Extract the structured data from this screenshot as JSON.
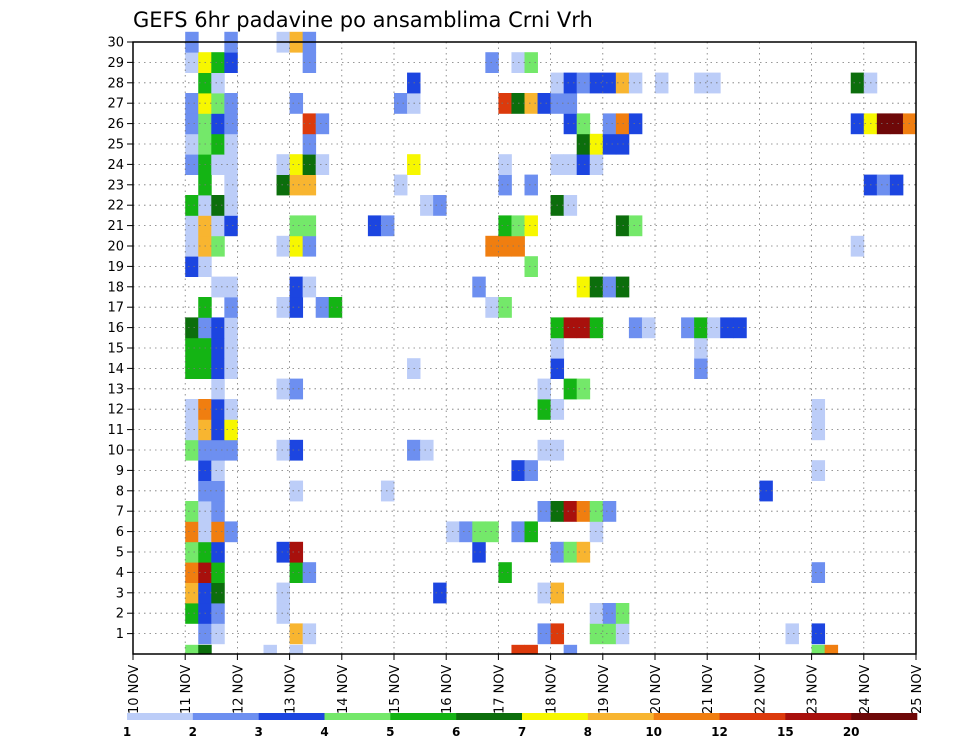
{
  "chart_data": {
    "type": "heatmap",
    "title": "GEFS 6hr padavine po ansamblima Crni Vrh",
    "y_ticks": [
      1,
      2,
      3,
      4,
      5,
      6,
      7,
      8,
      9,
      10,
      11,
      12,
      13,
      14,
      15,
      16,
      17,
      18,
      19,
      20,
      21,
      22,
      23,
      24,
      25,
      26,
      27,
      28,
      29,
      30
    ],
    "y_range": [
      0,
      30
    ],
    "x_range": [
      10,
      25
    ],
    "x_ticks": [
      "10 NOV",
      "11 NOV",
      "12 NOV",
      "13 NOV",
      "14 NOV",
      "15 NOV",
      "16 NOV",
      "17 NOV",
      "18 NOV",
      "19 NOV",
      "20 NOV",
      "21 NOV",
      "22 NOV",
      "23 NOV",
      "24 NOV",
      "25 NOV"
    ],
    "grid": true,
    "colorbar": {
      "labels": [
        "1",
        "2",
        "3",
        "4",
        "5",
        "6",
        "7",
        "8",
        "10",
        "12",
        "15",
        "20"
      ],
      "colors": [
        "#bccdf8",
        "#6d8ff0",
        "#1c45e0",
        "#74e86a",
        "#14b414",
        "#0c6e0c",
        "#f7f700",
        "#f8b530",
        "#f07e10",
        "#dc3a0c",
        "#a8100c",
        "#6e0808"
      ]
    },
    "cells": [
      [
        11.0,
        0,
        4
      ],
      [
        11.25,
        0,
        6
      ],
      [
        12.5,
        0,
        1
      ],
      [
        13.0,
        0,
        1
      ],
      [
        17.25,
        0,
        10
      ],
      [
        17.5,
        0,
        10
      ],
      [
        18.25,
        0,
        2
      ],
      [
        23.0,
        0,
        4
      ],
      [
        23.25,
        0,
        9
      ],
      [
        11.25,
        1,
        2
      ],
      [
        11.5,
        1,
        1
      ],
      [
        13.0,
        1,
        8
      ],
      [
        13.25,
        1,
        1
      ],
      [
        17.75,
        1,
        2
      ],
      [
        18.0,
        1,
        10
      ],
      [
        18.75,
        1,
        4
      ],
      [
        19.0,
        1,
        4
      ],
      [
        19.25,
        1,
        1
      ],
      [
        22.5,
        1,
        1
      ],
      [
        23.0,
        1,
        3
      ],
      [
        11.0,
        2,
        5
      ],
      [
        11.25,
        2,
        3
      ],
      [
        11.5,
        2,
        2
      ],
      [
        12.75,
        2,
        1
      ],
      [
        18.75,
        2,
        1
      ],
      [
        19.0,
        2,
        2
      ],
      [
        19.25,
        2,
        4
      ],
      [
        11.0,
        3,
        8
      ],
      [
        11.25,
        3,
        3
      ],
      [
        11.5,
        3,
        6
      ],
      [
        12.75,
        3,
        1
      ],
      [
        15.75,
        3,
        3
      ],
      [
        17.75,
        3,
        1
      ],
      [
        18.0,
        3,
        8
      ],
      [
        11.0,
        4,
        9
      ],
      [
        11.25,
        4,
        11
      ],
      [
        11.5,
        4,
        5
      ],
      [
        13.0,
        4,
        5
      ],
      [
        13.25,
        4,
        2
      ],
      [
        17.0,
        4,
        5
      ],
      [
        23.0,
        4,
        2
      ],
      [
        11.0,
        5,
        4
      ],
      [
        11.25,
        5,
        5
      ],
      [
        11.5,
        5,
        3
      ],
      [
        12.75,
        5,
        3
      ],
      [
        13.0,
        5,
        11
      ],
      [
        16.5,
        5,
        3
      ],
      [
        18.0,
        5,
        2
      ],
      [
        18.25,
        5,
        4
      ],
      [
        18.5,
        5,
        8
      ],
      [
        11.0,
        6,
        9
      ],
      [
        11.25,
        6,
        1
      ],
      [
        11.5,
        6,
        9
      ],
      [
        11.75,
        6,
        2
      ],
      [
        16.0,
        6,
        1
      ],
      [
        16.25,
        6,
        2
      ],
      [
        16.5,
        6,
        4
      ],
      [
        16.75,
        6,
        4
      ],
      [
        17.25,
        6,
        2
      ],
      [
        17.5,
        6,
        5
      ],
      [
        18.75,
        6,
        1
      ],
      [
        11.0,
        7,
        4
      ],
      [
        11.25,
        7,
        1
      ],
      [
        11.5,
        7,
        2
      ],
      [
        17.75,
        7,
        2
      ],
      [
        18.0,
        7,
        6
      ],
      [
        18.25,
        7,
        11
      ],
      [
        18.5,
        7,
        9
      ],
      [
        18.75,
        7,
        4
      ],
      [
        19.0,
        7,
        2
      ],
      [
        11.25,
        8,
        2
      ],
      [
        11.5,
        8,
        2
      ],
      [
        13.0,
        8,
        1
      ],
      [
        14.75,
        8,
        1
      ],
      [
        22.0,
        8,
        3
      ],
      [
        11.25,
        9,
        3
      ],
      [
        11.5,
        9,
        1
      ],
      [
        17.25,
        9,
        3
      ],
      [
        17.5,
        9,
        2
      ],
      [
        23.0,
        9,
        1
      ],
      [
        11.0,
        10,
        4
      ],
      [
        11.25,
        10,
        2
      ],
      [
        11.5,
        10,
        2
      ],
      [
        11.75,
        10,
        2
      ],
      [
        12.75,
        10,
        1
      ],
      [
        13.0,
        10,
        3
      ],
      [
        15.25,
        10,
        2
      ],
      [
        15.5,
        10,
        1
      ],
      [
        17.75,
        10,
        1
      ],
      [
        18.0,
        10,
        1
      ],
      [
        11.0,
        11,
        1
      ],
      [
        11.25,
        11,
        8
      ],
      [
        11.5,
        11,
        3
      ],
      [
        11.75,
        11,
        7
      ],
      [
        23.0,
        11,
        1
      ],
      [
        11.0,
        12,
        1
      ],
      [
        11.25,
        12,
        9
      ],
      [
        11.5,
        12,
        3
      ],
      [
        11.75,
        12,
        1
      ],
      [
        17.75,
        12,
        5
      ],
      [
        18.0,
        12,
        1
      ],
      [
        23.0,
        12,
        1
      ],
      [
        11.5,
        13,
        1
      ],
      [
        12.75,
        13,
        1
      ],
      [
        13.0,
        13,
        2
      ],
      [
        17.75,
        13,
        1
      ],
      [
        18.25,
        13,
        5
      ],
      [
        18.5,
        13,
        4
      ],
      [
        11.0,
        14,
        5
      ],
      [
        11.25,
        14,
        5
      ],
      [
        11.5,
        14,
        3
      ],
      [
        11.75,
        14,
        1
      ],
      [
        15.25,
        14,
        1
      ],
      [
        18.0,
        14,
        3
      ],
      [
        20.75,
        14,
        2
      ],
      [
        11.0,
        15,
        5
      ],
      [
        11.25,
        15,
        5
      ],
      [
        11.5,
        15,
        3
      ],
      [
        11.75,
        15,
        1
      ],
      [
        18.0,
        15,
        1
      ],
      [
        20.75,
        15,
        1
      ],
      [
        11.0,
        16,
        6
      ],
      [
        11.25,
        16,
        2
      ],
      [
        11.5,
        16,
        3
      ],
      [
        11.75,
        16,
        1
      ],
      [
        18.0,
        16,
        5
      ],
      [
        18.25,
        16,
        11
      ],
      [
        18.5,
        16,
        11
      ],
      [
        18.75,
        16,
        5
      ],
      [
        19.5,
        16,
        2
      ],
      [
        19.75,
        16,
        1
      ],
      [
        20.5,
        16,
        2
      ],
      [
        20.75,
        16,
        5
      ],
      [
        21.0,
        16,
        1
      ],
      [
        21.25,
        16,
        3
      ],
      [
        21.5,
        16,
        3
      ],
      [
        11.25,
        17,
        5
      ],
      [
        11.75,
        17,
        2
      ],
      [
        12.75,
        17,
        1
      ],
      [
        13.0,
        17,
        3
      ],
      [
        13.5,
        17,
        2
      ],
      [
        13.75,
        17,
        5
      ],
      [
        16.75,
        17,
        1
      ],
      [
        17.0,
        17,
        4
      ],
      [
        11.5,
        18,
        1
      ],
      [
        11.75,
        18,
        1
      ],
      [
        13.0,
        18,
        3
      ],
      [
        13.25,
        18,
        1
      ],
      [
        16.5,
        18,
        2
      ],
      [
        18.5,
        18,
        7
      ],
      [
        18.75,
        18,
        6
      ],
      [
        19.0,
        18,
        2
      ],
      [
        19.25,
        18,
        6
      ],
      [
        11.0,
        19,
        3
      ],
      [
        11.25,
        19,
        1
      ],
      [
        17.5,
        19,
        4
      ],
      [
        11.0,
        20,
        1
      ],
      [
        11.25,
        20,
        8
      ],
      [
        11.5,
        20,
        4
      ],
      [
        12.75,
        20,
        1
      ],
      [
        13.0,
        20,
        7
      ],
      [
        13.25,
        20,
        2
      ],
      [
        16.75,
        20,
        9
      ],
      [
        17.0,
        20,
        9
      ],
      [
        17.25,
        20,
        9
      ],
      [
        23.75,
        20,
        1
      ],
      [
        11.0,
        21,
        1
      ],
      [
        11.25,
        21,
        8
      ],
      [
        11.5,
        21,
        1
      ],
      [
        11.75,
        21,
        3
      ],
      [
        13.0,
        21,
        4
      ],
      [
        13.25,
        21,
        4
      ],
      [
        14.5,
        21,
        3
      ],
      [
        14.75,
        21,
        2
      ],
      [
        17.0,
        21,
        5
      ],
      [
        17.25,
        21,
        4
      ],
      [
        17.5,
        21,
        7
      ],
      [
        19.25,
        21,
        6
      ],
      [
        19.5,
        21,
        4
      ],
      [
        11.0,
        22,
        5
      ],
      [
        11.25,
        22,
        1
      ],
      [
        11.5,
        22,
        6
      ],
      [
        11.75,
        22,
        1
      ],
      [
        15.5,
        22,
        1
      ],
      [
        15.75,
        22,
        2
      ],
      [
        18.0,
        22,
        6
      ],
      [
        18.25,
        22,
        1
      ],
      [
        11.25,
        23,
        5
      ],
      [
        11.75,
        23,
        1
      ],
      [
        12.75,
        23,
        6
      ],
      [
        13.0,
        23,
        8
      ],
      [
        13.25,
        23,
        8
      ],
      [
        15.0,
        23,
        1
      ],
      [
        17.0,
        23,
        2
      ],
      [
        17.5,
        23,
        2
      ],
      [
        24.0,
        23,
        3
      ],
      [
        24.25,
        23,
        2
      ],
      [
        24.5,
        23,
        3
      ],
      [
        11.0,
        24,
        2
      ],
      [
        11.25,
        24,
        5
      ],
      [
        11.5,
        24,
        1
      ],
      [
        11.75,
        24,
        1
      ],
      [
        12.75,
        24,
        1
      ],
      [
        13.0,
        24,
        7
      ],
      [
        13.25,
        24,
        6
      ],
      [
        13.5,
        24,
        1
      ],
      [
        15.25,
        24,
        7
      ],
      [
        17.0,
        24,
        1
      ],
      [
        18.0,
        24,
        1
      ],
      [
        18.25,
        24,
        1
      ],
      [
        18.5,
        24,
        3
      ],
      [
        18.75,
        24,
        1
      ],
      [
        11.0,
        25,
        1
      ],
      [
        11.25,
        25,
        4
      ],
      [
        11.5,
        25,
        5
      ],
      [
        11.75,
        25,
        1
      ],
      [
        13.25,
        25,
        2
      ],
      [
        18.5,
        25,
        6
      ],
      [
        18.75,
        25,
        7
      ],
      [
        19.0,
        25,
        3
      ],
      [
        19.25,
        25,
        3
      ],
      [
        11.0,
        26,
        2
      ],
      [
        11.25,
        26,
        4
      ],
      [
        11.5,
        26,
        3
      ],
      [
        11.75,
        26,
        2
      ],
      [
        13.25,
        26,
        10
      ],
      [
        13.5,
        26,
        2
      ],
      [
        18.25,
        26,
        3
      ],
      [
        18.5,
        26,
        4
      ],
      [
        19.0,
        26,
        2
      ],
      [
        19.25,
        26,
        9
      ],
      [
        19.5,
        26,
        3
      ],
      [
        23.75,
        26,
        3
      ],
      [
        24.0,
        26,
        7
      ],
      [
        24.25,
        26,
        12
      ],
      [
        24.5,
        26,
        12
      ],
      [
        24.75,
        26,
        9
      ],
      [
        11.0,
        27,
        2
      ],
      [
        11.25,
        27,
        7
      ],
      [
        11.5,
        27,
        4
      ],
      [
        11.75,
        27,
        2
      ],
      [
        13.0,
        27,
        2
      ],
      [
        15.0,
        27,
        2
      ],
      [
        15.25,
        27,
        1
      ],
      [
        17.0,
        27,
        10
      ],
      [
        17.25,
        27,
        6
      ],
      [
        17.5,
        27,
        8
      ],
      [
        17.75,
        27,
        3
      ],
      [
        18.0,
        27,
        2
      ],
      [
        18.25,
        27,
        2
      ],
      [
        11.25,
        28,
        5
      ],
      [
        11.5,
        28,
        1
      ],
      [
        15.25,
        28,
        3
      ],
      [
        18.0,
        28,
        1
      ],
      [
        18.25,
        28,
        3
      ],
      [
        18.5,
        28,
        2
      ],
      [
        18.75,
        28,
        3
      ],
      [
        19.0,
        28,
        3
      ],
      [
        19.25,
        28,
        8
      ],
      [
        19.5,
        28,
        1
      ],
      [
        20.0,
        28,
        1
      ],
      [
        20.75,
        28,
        1
      ],
      [
        21.0,
        28,
        1
      ],
      [
        23.75,
        28,
        6
      ],
      [
        24.0,
        28,
        1
      ],
      [
        11.0,
        29,
        1
      ],
      [
        11.25,
        29,
        7
      ],
      [
        11.5,
        29,
        5
      ],
      [
        11.75,
        29,
        3
      ],
      [
        13.25,
        29,
        2
      ],
      [
        16.75,
        29,
        2
      ],
      [
        17.25,
        29,
        1
      ],
      [
        17.5,
        29,
        4
      ],
      [
        11.0,
        30,
        2
      ],
      [
        11.75,
        30,
        2
      ],
      [
        12.75,
        30,
        1
      ],
      [
        13.0,
        30,
        8
      ],
      [
        13.25,
        30,
        2
      ]
    ]
  }
}
